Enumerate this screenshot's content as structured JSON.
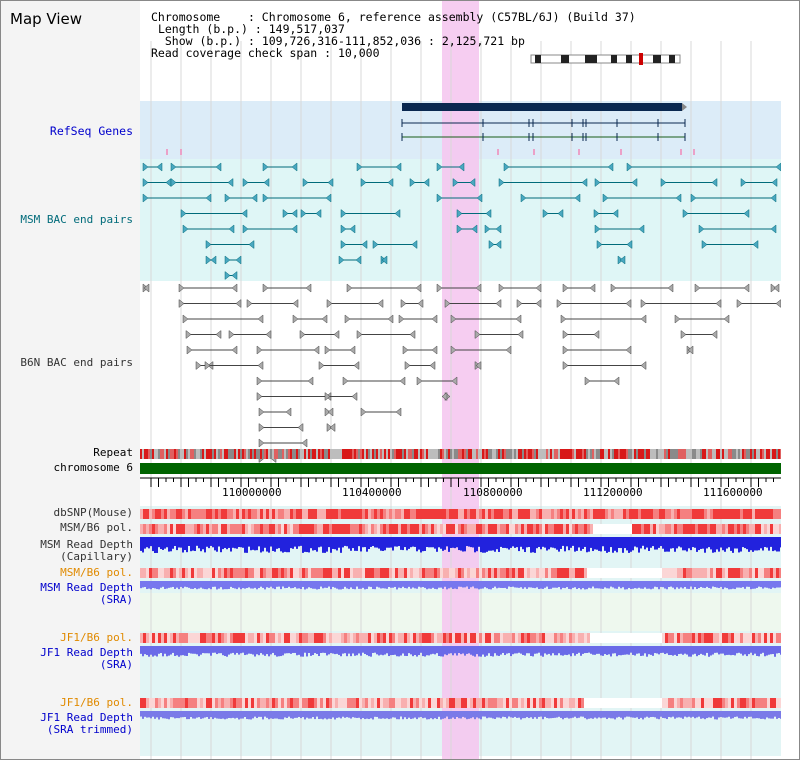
{
  "title": "Map View",
  "info": {
    "chromosome_key": "Chromosome",
    "chromosome_val": "Chromosome 6, reference assembly (C57BL/6J) (Build 37)",
    "length_key": "Length (b.p.)",
    "length_val": "149,517,037",
    "show_key": "Show (b.p.)",
    "show_val": "109,726,316-111,852,036 : 2,125,721 bp",
    "span_key": "Read coverage check span",
    "span_val": "10,000"
  },
  "axis": {
    "ticks": [
      "110000000",
      "110400000",
      "110800000",
      "111200000",
      "111600000"
    ]
  },
  "labels": {
    "refseq": "RefSeq Genes",
    "msm_bac": "MSM BAC end pairs",
    "b6n_bac": "B6N BAC end pairs",
    "repeat": "Repeat",
    "chromosome": "chromosome 6",
    "dbsnp": "dbSNP(Mouse)",
    "msm_b6_pol_1": "MSM/B6 pol.",
    "msm_depth_cap_1": "MSM Read Depth",
    "msm_depth_cap_2": "(Capillary)",
    "msm_b6_pol_2": "MSM/B6 pol.",
    "msm_depth_sra_1": "MSM Read Depth",
    "msm_depth_sra_2": "(SRA)",
    "jf1_b6_pol_1": "JF1/B6 pol.",
    "jf1_depth_sra_1": "JF1 Read Depth",
    "jf1_depth_sra_2": "(SRA)",
    "jf1_b6_pol_2": "JF1/B6 pol.",
    "jf1_depth_trim_1": "JF1 Read Depth",
    "jf1_depth_trim_2": "(SRA trimmed)"
  },
  "colors": {
    "blue_label": "#0000cc",
    "teal_label": "#006b7a",
    "orange_label": "#e08a00",
    "gray_label": "#333333",
    "highlight": "#f5c8f0",
    "chromosome_bar": "#006400",
    "depth_blue": "#2222dd",
    "depth_light": "#7777ee"
  }
}
